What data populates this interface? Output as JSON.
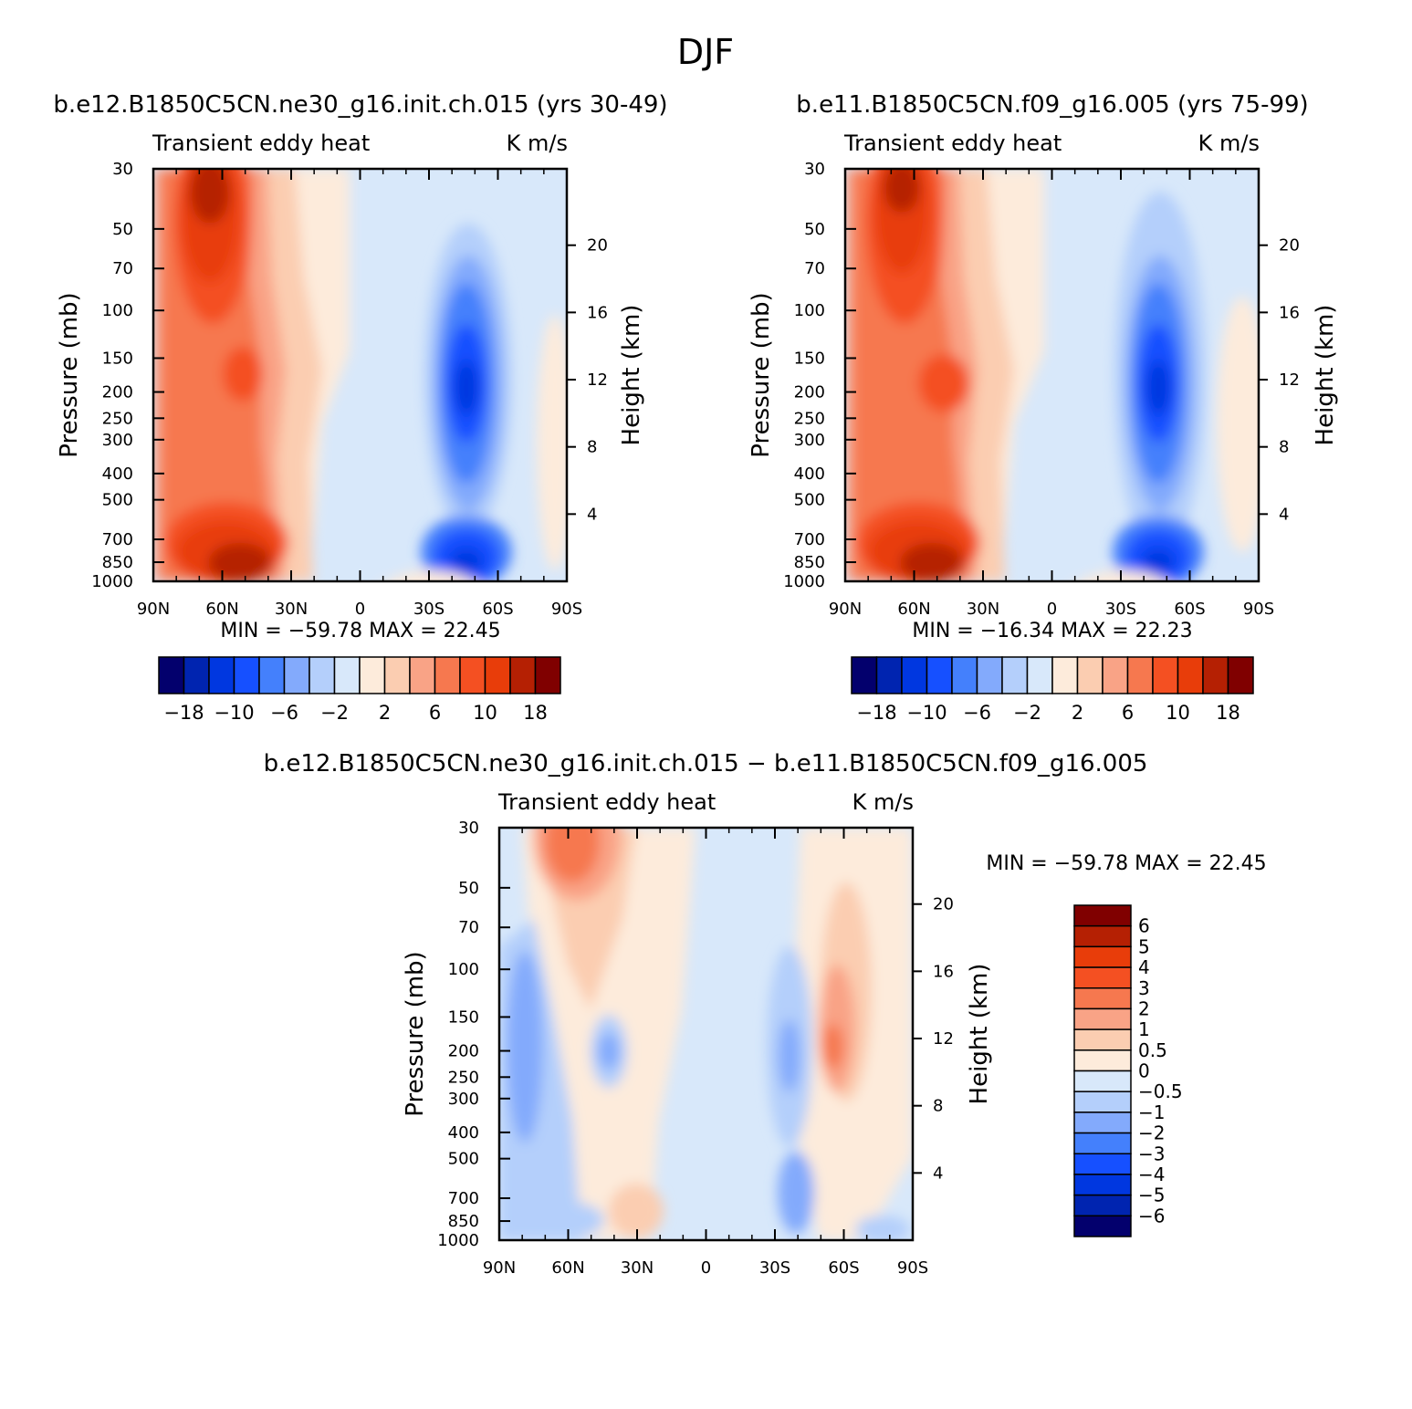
{
  "page_title": "DJF",
  "panels": [
    {
      "title": "b.e12.B1850C5CN.ne30_g16.init.ch.015 (yrs 30-49)",
      "left_label": "Transient eddy heat",
      "right_label": "K m/s",
      "stats": "MIN =  −59.78   MAX =   22.45"
    },
    {
      "title": "b.e11.B1850C5CN.f09_g16.005 (yrs 75-99)",
      "left_label": "Transient eddy heat",
      "right_label": "K m/s",
      "stats": "MIN =  −16.34   MAX =   22.23"
    },
    {
      "title": "b.e12.B1850C5CN.ne30_g16.init.ch.015 − b.e11.B1850C5CN.f09_g16.005",
      "left_label": "Transient eddy heat",
      "right_label": "K m/s",
      "stats": "MIN =  −59.78   MAX =   22.45"
    }
  ],
  "chart_data": [
    {
      "type": "heatmap",
      "title": "b.e12.B1850C5CN.ne30_g16.init.ch.015 (yrs 30-49)",
      "variable": "Transient eddy heat",
      "units": "K m/s",
      "x": {
        "label": "",
        "ticks": [
          "90N",
          "60N",
          "30N",
          "0",
          "30S",
          "60S",
          "90S"
        ],
        "range": [
          90,
          -90
        ]
      },
      "y": {
        "label": "Pressure (mb)",
        "ticks": [
          "30",
          "50",
          "70",
          "100",
          "150",
          "200",
          "250",
          "300",
          "400",
          "500",
          "700",
          "850",
          "1000"
        ],
        "scale": "log",
        "range": [
          1000,
          30
        ]
      },
      "y2": {
        "label": "Height (km)",
        "ticks": [
          "4",
          "8",
          "12",
          "16",
          "20"
        ]
      },
      "min": -59.78,
      "max": 22.45,
      "features": [
        {
          "lat": 65,
          "p": 40,
          "value": 20
        },
        {
          "lat": 60,
          "p": 900,
          "value": 20
        },
        {
          "lat": 45,
          "p": 200,
          "value": 10
        },
        {
          "lat": -45,
          "p": 200,
          "value": -18
        },
        {
          "lat": -45,
          "p": 850,
          "value": -16
        }
      ]
    },
    {
      "type": "heatmap",
      "title": "b.e11.B1850C5CN.f09_g16.005 (yrs 75-99)",
      "variable": "Transient eddy heat",
      "units": "K m/s",
      "x": {
        "label": "",
        "ticks": [
          "90N",
          "60N",
          "30N",
          "0",
          "30S",
          "60S",
          "90S"
        ],
        "range": [
          90,
          -90
        ]
      },
      "y": {
        "label": "Pressure (mb)",
        "ticks": [
          "30",
          "50",
          "70",
          "100",
          "150",
          "200",
          "250",
          "300",
          "400",
          "500",
          "700",
          "850",
          "1000"
        ],
        "scale": "log",
        "range": [
          1000,
          30
        ]
      },
      "y2": {
        "label": "Height (km)",
        "ticks": [
          "4",
          "8",
          "12",
          "16",
          "20"
        ]
      },
      "min": -16.34,
      "max": 22.23,
      "features": [
        {
          "lat": 65,
          "p": 40,
          "value": 18
        },
        {
          "lat": 60,
          "p": 900,
          "value": 20
        },
        {
          "lat": 45,
          "p": 200,
          "value": 12
        },
        {
          "lat": -45,
          "p": 200,
          "value": -16
        },
        {
          "lat": -45,
          "p": 850,
          "value": -16
        }
      ]
    },
    {
      "type": "heatmap",
      "title": "b.e12.B1850C5CN.ne30_g16.init.ch.015 − b.e11.B1850C5CN.f09_g16.005",
      "variable": "Transient eddy heat",
      "units": "K m/s",
      "x": {
        "label": "",
        "ticks": [
          "90N",
          "60N",
          "30N",
          "0",
          "30S",
          "60S",
          "90S"
        ],
        "range": [
          90,
          -90
        ]
      },
      "y": {
        "label": "Pressure (mb)",
        "ticks": [
          "30",
          "50",
          "70",
          "100",
          "150",
          "200",
          "250",
          "300",
          "400",
          "500",
          "700",
          "850",
          "1000"
        ],
        "scale": "log",
        "range": [
          1000,
          30
        ]
      },
      "y2": {
        "label": "Height (km)",
        "ticks": [
          "4",
          "8",
          "12",
          "16",
          "20"
        ]
      },
      "min": -59.78,
      "max": 22.45,
      "features": [
        {
          "lat": 60,
          "p": 40,
          "value": 3
        },
        {
          "lat": -55,
          "p": 190,
          "value": 3
        },
        {
          "lat": 80,
          "p": 150,
          "value": -2
        },
        {
          "lat": -35,
          "p": 200,
          "value": -2
        },
        {
          "lat": 45,
          "p": 200,
          "value": -1.5
        }
      ]
    }
  ],
  "colorbars": {
    "top": {
      "colors": [
        "#03006d",
        "#0024b0",
        "#0037e0",
        "#1650ff",
        "#4480fc",
        "#83aafc",
        "#b4cffb",
        "#d8e8fa",
        "#fdebdb",
        "#fbcdb1",
        "#f9a386",
        "#f6784f",
        "#f45022",
        "#e83d0a",
        "#b52003",
        "#800000"
      ],
      "labels": [
        "−18",
        "−10",
        "−6",
        "−2",
        "2",
        "6",
        "10",
        "18"
      ]
    },
    "bottom": {
      "colors": [
        "#03006d",
        "#0024b0",
        "#0037e0",
        "#1650ff",
        "#4480fc",
        "#83aafc",
        "#b4cffb",
        "#d8e8fa",
        "#fdebdb",
        "#fbcdb1",
        "#f9a386",
        "#f6784f",
        "#f45022",
        "#e83d0a",
        "#b52003",
        "#800000"
      ],
      "labels": [
        "6",
        "5",
        "4",
        "3",
        "2",
        "1",
        "0.5",
        "0",
        "−0.5",
        "−1",
        "−2",
        "−3",
        "−4",
        "−5",
        "−6"
      ]
    }
  }
}
